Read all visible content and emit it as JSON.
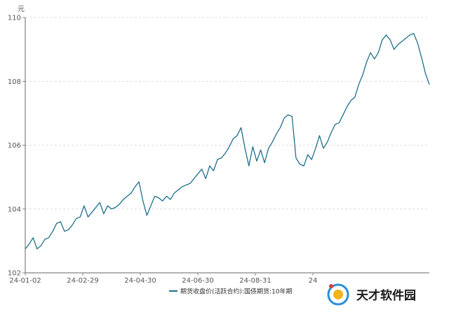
{
  "chart_data": {
    "type": "line",
    "unit_label": "元",
    "ylim": [
      102,
      110
    ],
    "y_ticks": [
      102,
      104,
      106,
      108,
      110
    ],
    "y_tick_labels": [
      "102",
      "104",
      "106",
      "108",
      "110"
    ],
    "x_tick_labels": [
      "24-01-02",
      "24-02-29",
      "24-04-30",
      "24-06-30",
      "24-08-31",
      "24"
    ],
    "grid": "horizontal dashed",
    "legend_position": "bottom-center",
    "series": [
      {
        "name": "期货收盘价(活跃合约):国债期货:10年期",
        "color": "#1f6f8b",
        "values": [
          102.75,
          102.9,
          103.1,
          102.75,
          102.85,
          103.05,
          103.1,
          103.3,
          103.55,
          103.6,
          103.3,
          103.35,
          103.5,
          103.7,
          103.75,
          104.1,
          103.75,
          103.9,
          104.05,
          104.2,
          103.85,
          104.1,
          104.0,
          104.05,
          104.15,
          104.3,
          104.4,
          104.5,
          104.7,
          104.85,
          104.25,
          103.8,
          104.1,
          104.4,
          104.35,
          104.25,
          104.4,
          104.3,
          104.5,
          104.6,
          104.7,
          104.75,
          104.8,
          104.95,
          105.1,
          105.25,
          104.95,
          105.35,
          105.2,
          105.55,
          105.6,
          105.75,
          105.95,
          106.2,
          106.3,
          106.55,
          105.9,
          105.35,
          105.95,
          105.5,
          105.85,
          105.45,
          105.9,
          106.1,
          106.35,
          106.55,
          106.85,
          106.95,
          106.9,
          105.6,
          105.4,
          105.35,
          105.7,
          105.55,
          105.9,
          106.3,
          105.9,
          106.1,
          106.4,
          106.65,
          106.7,
          106.95,
          107.2,
          107.4,
          107.5,
          107.9,
          108.2,
          108.6,
          108.9,
          108.7,
          108.9,
          109.3,
          109.45,
          109.3,
          109.0,
          109.15,
          109.25,
          109.35,
          109.45,
          109.5,
          109.2,
          108.75,
          108.25,
          107.9
        ]
      }
    ]
  },
  "watermark": {
    "text": "天才软件园"
  }
}
